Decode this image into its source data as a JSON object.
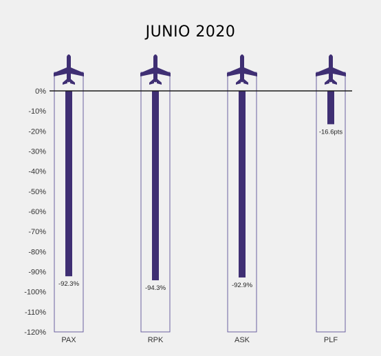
{
  "chart_data": {
    "type": "bar",
    "title": "JUNIO 2020",
    "categories": [
      "PAX",
      "RPK",
      "ASK",
      "PLF"
    ],
    "values": [
      -92.3,
      -94.3,
      -92.9,
      -16.6
    ],
    "data_labels": [
      "-92.3%",
      "-94.3%",
      "-92.9%",
      "-16.6pts"
    ],
    "ylim": [
      -120,
      0
    ],
    "yticks": [
      0,
      -10,
      -20,
      -30,
      -40,
      -50,
      -60,
      -70,
      -80,
      -90,
      -100,
      -110,
      -120
    ],
    "ytick_labels": [
      "0%",
      "-10%",
      "-20%",
      "-30%",
      "-40%",
      "-50%",
      "-60%",
      "-70%",
      "-80%",
      "-90%",
      "-100%",
      "-110%",
      "-120%"
    ],
    "grid": false,
    "legend": "none",
    "bar_icon": "airplane-icon",
    "colors": {
      "bar": "#3f2f73",
      "outline": "#6a5fa0",
      "zero_line": "#1a1a1a"
    }
  }
}
